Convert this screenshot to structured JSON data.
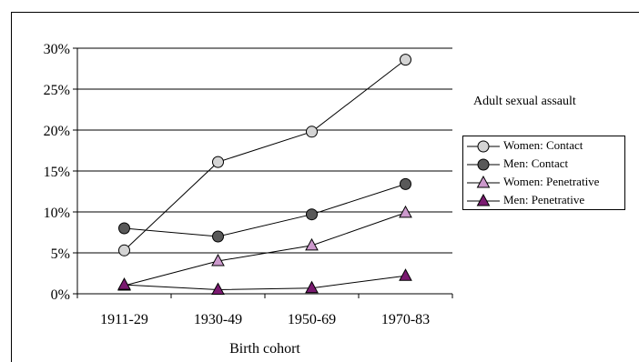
{
  "chart_data": {
    "type": "line",
    "categories": [
      "1911-29",
      "1930-49",
      "1950-69",
      "1970-83"
    ],
    "series": [
      {
        "name": "Women: Contact",
        "values": [
          5.3,
          16.1,
          19.8,
          28.6
        ],
        "marker": "circle",
        "color": "#d4d4d4"
      },
      {
        "name": "Men: Contact",
        "values": [
          8.0,
          7.0,
          9.7,
          13.4
        ],
        "marker": "circle",
        "color": "#595959"
      },
      {
        "name": "Women: Penetrative",
        "values": [
          1.0,
          4.0,
          5.9,
          9.9
        ],
        "marker": "triangle",
        "color": "#cc99cc"
      },
      {
        "name": "Men: Penetrative",
        "values": [
          1.1,
          0.5,
          0.7,
          2.2
        ],
        "marker": "triangle",
        "color": "#7a1a70"
      }
    ],
    "title": "",
    "xlabel": "Birth cohort",
    "ylabel": "",
    "ylim": [
      0,
      30
    ],
    "yticks": [
      "0%",
      "5%",
      "10%",
      "15%",
      "20%",
      "25%",
      "30%"
    ],
    "grid": true,
    "legend_title": "Adult sexual assault",
    "legend_position": "right"
  }
}
